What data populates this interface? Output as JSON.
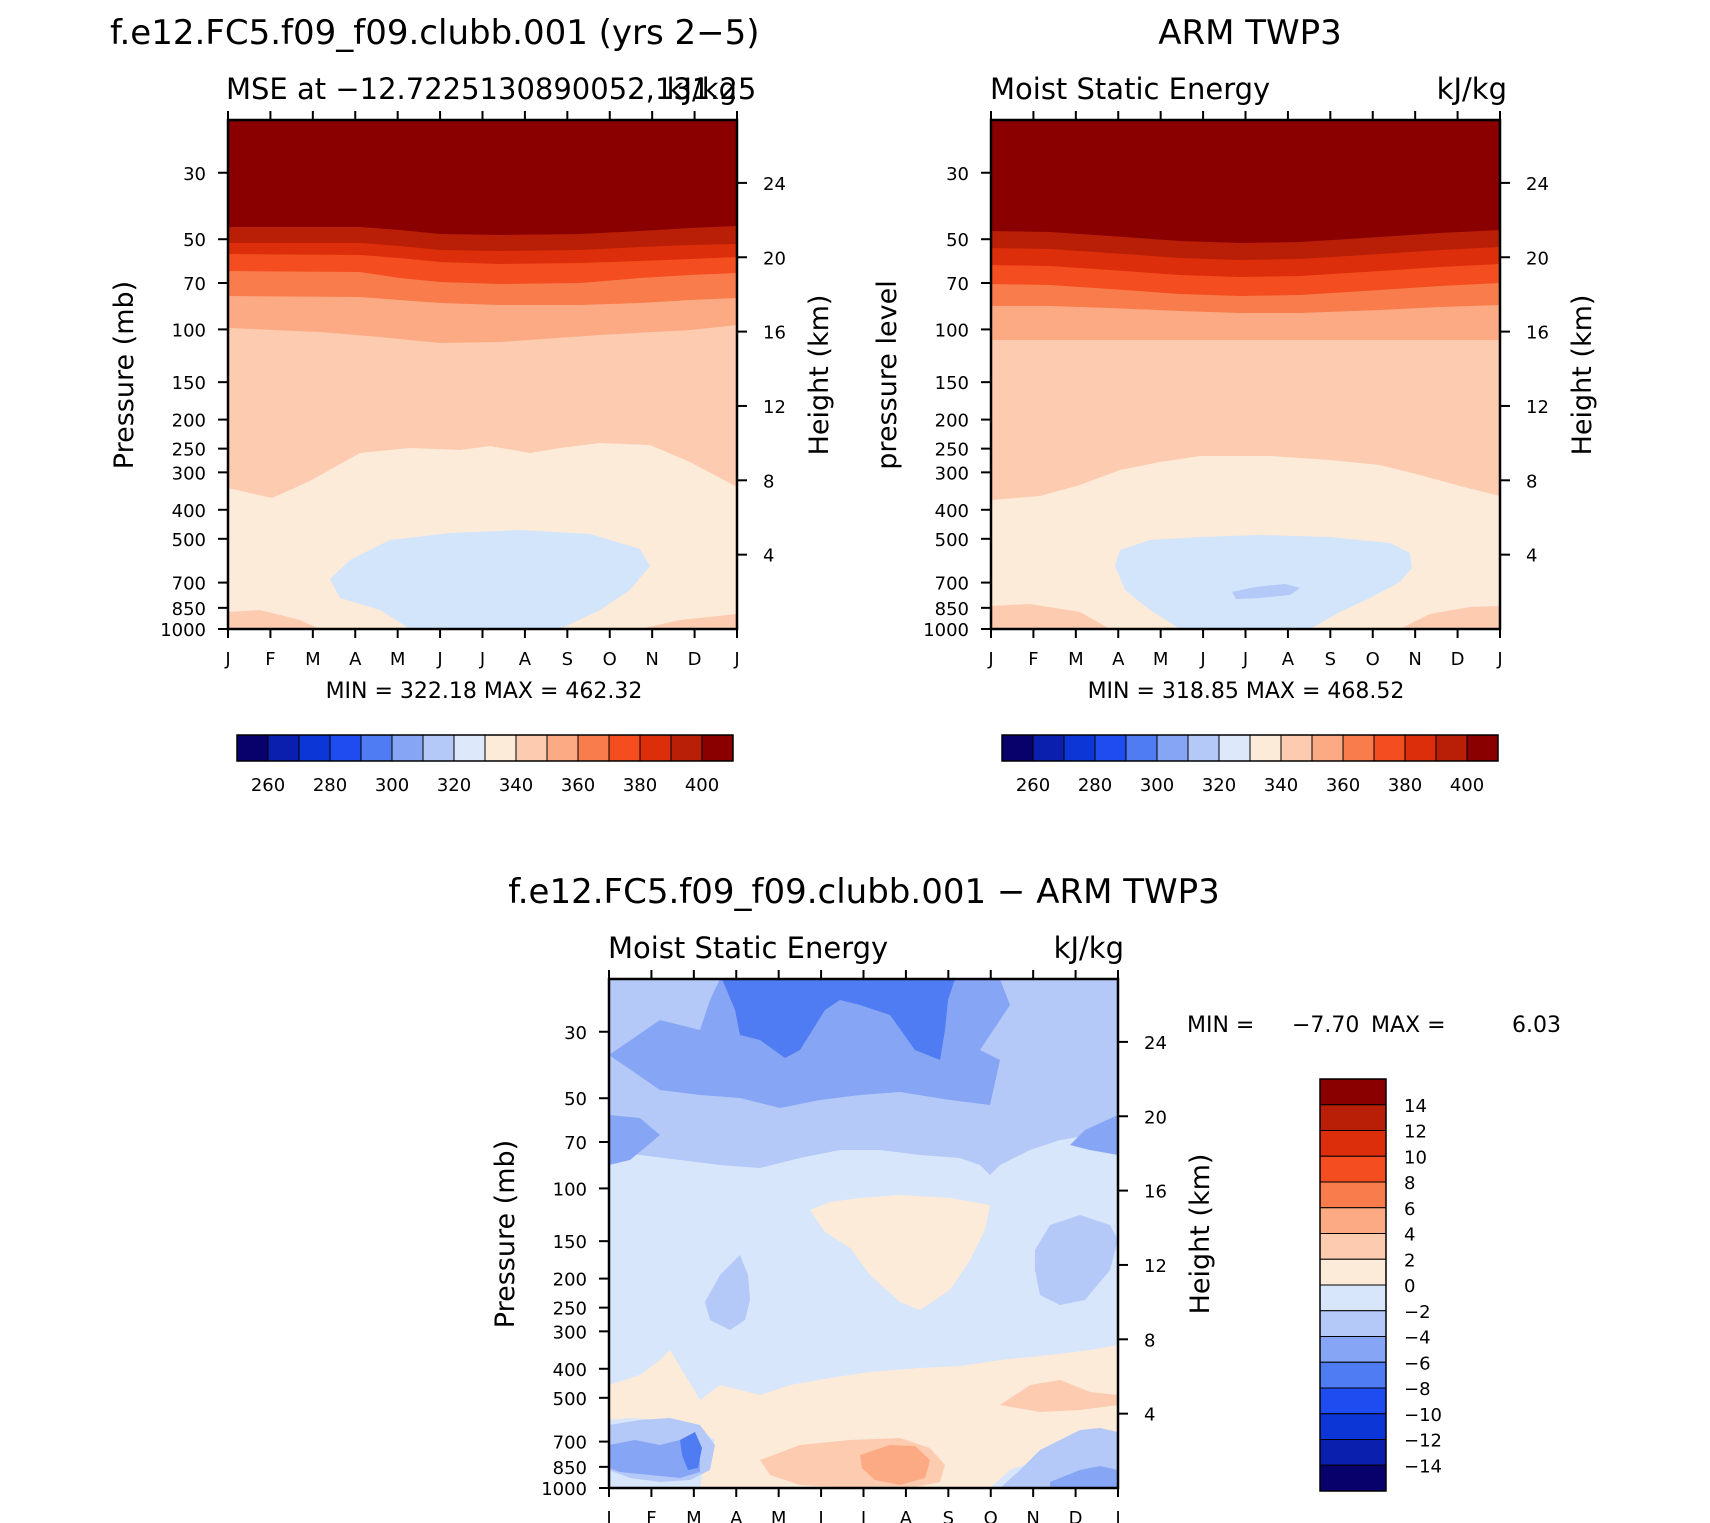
{
  "colors": {
    "mse_scale": [
      "#08006b",
      "#0a1fad",
      "#0c36d6",
      "#1f4cf0",
      "#4f7cf2",
      "#86a6f5",
      "#b4c9f8",
      "#dde9fb",
      "#fdebd9",
      "#fccbb0",
      "#fbaa84",
      "#f87c4c",
      "#f44d1f",
      "#dc2e0a",
      "#b81f06",
      "#8a0000"
    ],
    "diff_scale": [
      "#08006b",
      "#0a1fad",
      "#0c36d6",
      "#1f4cf0",
      "#4f7cf2",
      "#86a6f5",
      "#b4c9f8",
      "#d7e6fb",
      "#fdebd9",
      "#fccbb0",
      "#fbaa84",
      "#f87c4c",
      "#f44d1f",
      "#dc2e0a",
      "#b81f06",
      "#8a0000"
    ]
  },
  "chart_data": [
    {
      "id": "model",
      "type": "heatmap",
      "title": "f.e12.FC5.f09_f09.clubb.001 (yrs 2−5)",
      "subtitle_left": "MSE at −12.7225130890052,131.25",
      "subtitle_right": "kJ/kg",
      "ylabel": "Pressure (mb)",
      "ylabel_right": "Height (km)",
      "x_ticks": [
        "J",
        "F",
        "M",
        "A",
        "M",
        "J",
        "J",
        "A",
        "S",
        "O",
        "N",
        "D",
        "J"
      ],
      "y_ticks": [
        "30",
        "50",
        "70",
        "100",
        "150",
        "200",
        "250",
        "300",
        "400",
        "500",
        "700",
        "850",
        "1000"
      ],
      "y_ticks_right": [
        "24",
        "20",
        "16",
        "12",
        "8",
        "4"
      ],
      "ylim_mb": [
        1000,
        20
      ],
      "stats": "MIN = 322.18 MAX = 462.32",
      "colorbar": {
        "labels": [
          "260",
          "280",
          "300",
          "320",
          "340",
          "360",
          "380",
          "400"
        ],
        "levels": [
          250,
          260,
          270,
          280,
          290,
          300,
          310,
          320,
          330,
          340,
          350,
          360,
          370,
          380,
          390,
          400
        ]
      },
      "bands_kJ_kg": [
        {
          "range": "> 400",
          "pressure_bottom_mb": [
            55,
            56,
            56,
            58,
            60,
            60,
            60,
            60,
            59,
            58,
            56,
            55,
            55
          ]
        },
        {
          "range": "390-400",
          "pressure_bottom_mb": [
            63,
            63,
            63,
            64,
            68,
            70,
            70,
            70,
            69,
            67,
            64,
            63,
            63
          ]
        },
        {
          "range": "380-390",
          "pressure_bottom_mb": [
            70,
            70,
            70,
            72,
            77,
            80,
            80,
            80,
            78,
            75,
            72,
            70,
            70
          ]
        },
        {
          "range": "370-380",
          "pressure_bottom_mb": [
            80,
            80,
            80,
            82,
            88,
            91,
            92,
            91,
            89,
            86,
            82,
            80,
            80
          ]
        },
        {
          "range": "360-370",
          "pressure_bottom_mb": [
            97,
            98,
            98,
            100,
            110,
            112,
            112,
            112,
            110,
            106,
            100,
            97,
            97
          ]
        },
        {
          "range": "340-350",
          "pressure_bottom_mb": [
            380,
            390,
            320,
            255,
            290,
            290,
            270,
            290,
            265,
            265,
            290,
            330,
            370
          ]
        },
        {
          "range": "330-340",
          "pressure_bottom_mb": [
            900,
            920,
            1000,
            1000,
            1000,
            1000,
            1000,
            1000,
            1000,
            1000,
            960,
            920,
            900
          ]
        },
        {
          "range": "310-320",
          "region": "lower-troposphere pool May-Sep, 500-1000 mb"
        }
      ]
    },
    {
      "id": "obs",
      "type": "heatmap",
      "title": "ARM TWP3",
      "subtitle_left": "Moist Static Energy",
      "subtitle_right": "kJ/kg",
      "ylabel": "pressure level",
      "ylabel_right": "Height (km)",
      "x_ticks": [
        "J",
        "F",
        "M",
        "A",
        "M",
        "J",
        "J",
        "A",
        "S",
        "O",
        "N",
        "D",
        "J"
      ],
      "y_ticks": [
        "30",
        "50",
        "70",
        "100",
        "150",
        "200",
        "250",
        "300",
        "400",
        "500",
        "700",
        "850",
        "1000"
      ],
      "y_ticks_right": [
        "24",
        "20",
        "16",
        "12",
        "8",
        "4"
      ],
      "ylim_mb": [
        1000,
        20
      ],
      "stats": "MIN = 318.85 MAX = 468.52",
      "colorbar": {
        "labels": [
          "260",
          "280",
          "300",
          "320",
          "340",
          "360",
          "380",
          "400"
        ],
        "levels": [
          250,
          260,
          270,
          280,
          290,
          300,
          310,
          320,
          330,
          340,
          350,
          360,
          370,
          380,
          390,
          400
        ]
      },
      "bands_kJ_kg": [
        {
          "range": "> 400",
          "pressure_bottom_mb": [
            57,
            57,
            58,
            60,
            62,
            64,
            65,
            64,
            62,
            60,
            58,
            57,
            57
          ]
        },
        {
          "range": "390-400",
          "pressure_bottom_mb": [
            65,
            65,
            66,
            68,
            70,
            72,
            73,
            72,
            70,
            68,
            66,
            65,
            65
          ]
        },
        {
          "range": "380-390",
          "pressure_bottom_mb": [
            75,
            75,
            76,
            78,
            80,
            82,
            83,
            82,
            80,
            78,
            76,
            75,
            75
          ]
        },
        {
          "range": "370-380",
          "pressure_bottom_mb": [
            88,
            88,
            88,
            90,
            92,
            94,
            95,
            94,
            92,
            90,
            88,
            88,
            88
          ]
        },
        {
          "range": "360-370",
          "pressure_bottom_mb": [
            112,
            112,
            112,
            113,
            114,
            115,
            115,
            115,
            114,
            113,
            112,
            112,
            112
          ]
        },
        {
          "range": "340-350",
          "pressure_bottom_mb": [
            375,
            370,
            350,
            310,
            290,
            275,
            270,
            270,
            275,
            290,
            320,
            350,
            370
          ]
        },
        {
          "range": "330-340",
          "pressure_bottom_mb": [
            860,
            870,
            920,
            1000,
            1000,
            1000,
            1000,
            1000,
            1000,
            1000,
            930,
            870,
            860
          ]
        },
        {
          "range": "310-320",
          "region": "lower-troposphere pool Apr-Sep, 500-1000 mb"
        },
        {
          "range": "300-310",
          "region": "small patch near Jul, ~780 mb"
        }
      ]
    },
    {
      "id": "diff",
      "type": "heatmap",
      "title": "f.e12.FC5.f09_f09.clubb.001 − ARM TWP3",
      "subtitle_left": "Moist Static Energy",
      "subtitle_right": "kJ/kg",
      "ylabel": "Pressure (mb)",
      "ylabel_right": "Height (km)",
      "x_ticks": [
        "J",
        "F",
        "M",
        "A",
        "M",
        "J",
        "J",
        "A",
        "S",
        "O",
        "N",
        "D",
        "J"
      ],
      "y_ticks": [
        "30",
        "50",
        "70",
        "100",
        "150",
        "200",
        "250",
        "300",
        "400",
        "500",
        "700",
        "850",
        "1000"
      ],
      "y_ticks_right": [
        "24",
        "20",
        "16",
        "12",
        "8",
        "4"
      ],
      "ylim_mb": [
        1000,
        20
      ],
      "stats_min_label": "MIN =",
      "stats_min": "−7.70",
      "stats_max_label": "MAX =",
      "stats_max": "6.03",
      "colorbar": {
        "labels": [
          "14",
          "12",
          "10",
          "8",
          "6",
          "4",
          "2",
          "0",
          "−2",
          "−4",
          "−6",
          "−8",
          "−10",
          "−12",
          "−14"
        ],
        "levels": [
          -14,
          -12,
          -10,
          -8,
          -6,
          -4,
          -2,
          0,
          2,
          4,
          6,
          8,
          10,
          12,
          14
        ]
      },
      "description": "negative (blue) differences aloft, strongest −4 to −6 in Apr-Aug above 50 mb; small positive (0 to 4) differences in Jun-Aug at 150-250 mb and in the lower troposphere 500-900 mb"
    }
  ]
}
